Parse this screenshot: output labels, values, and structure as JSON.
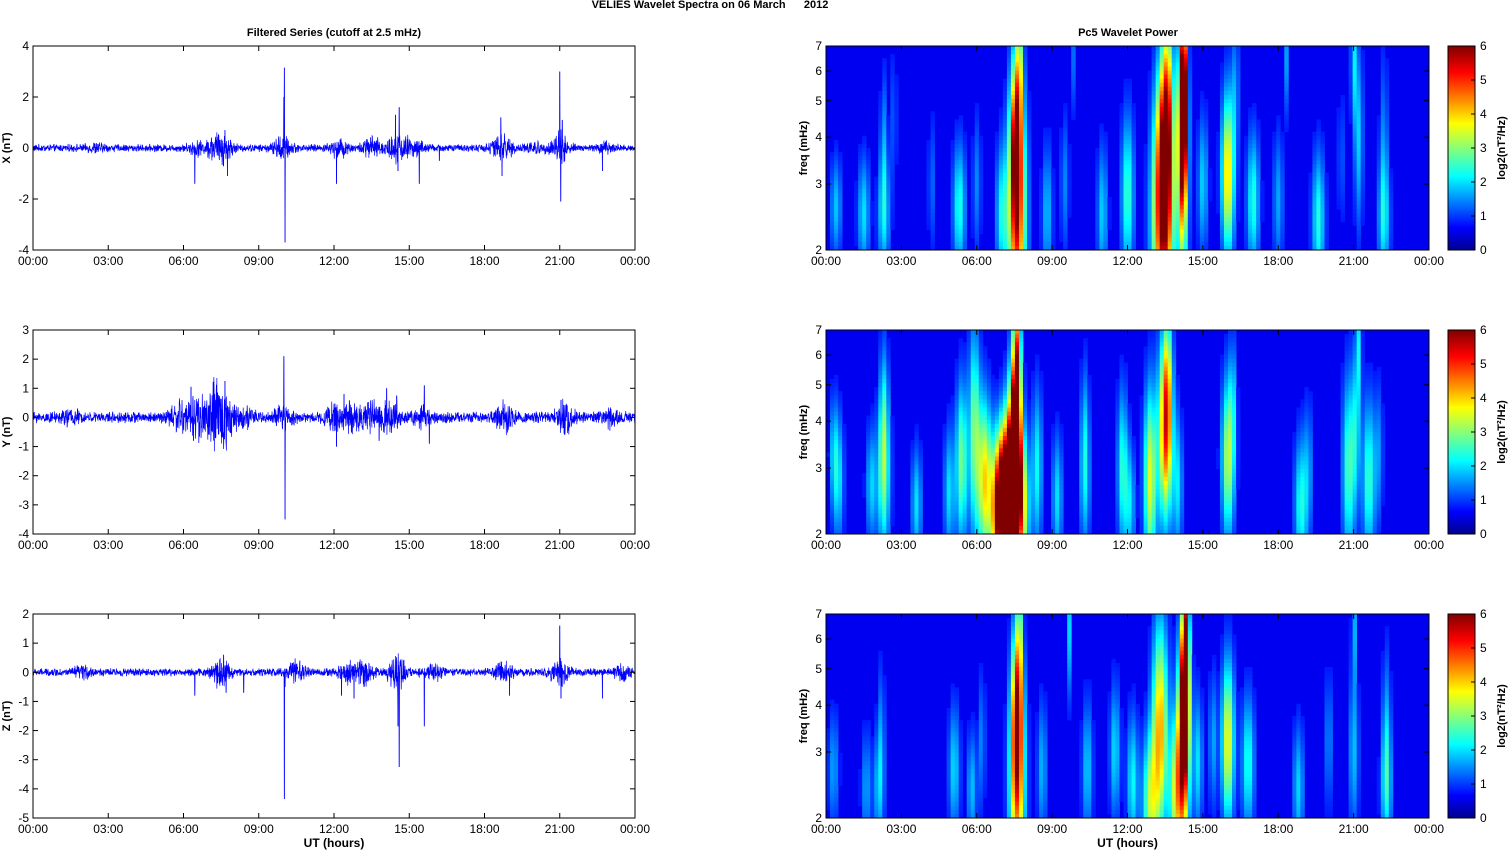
{
  "figure": {
    "title": "VELIES Wavelet Spectra on 06 March      2012",
    "left_title": "Filtered Series (cutoff at 2.5 mHz)",
    "right_title": "Pc5 Wavelet Power",
    "x_tick_labels": [
      "00:00",
      "03:00",
      "06:00",
      "09:00",
      "12:00",
      "15:00",
      "18:00",
      "21:00",
      "00:00"
    ],
    "xlabel": "UT (hours)",
    "colorbar_label": "log2(nT²/Hz)",
    "colorbar_ticks": [
      "0",
      "1",
      "2",
      "3",
      "4",
      "5",
      "6"
    ],
    "freq_label": "freq (mHz)",
    "freq_ticks": [
      "2",
      "3",
      "4",
      "5",
      "6",
      "7"
    ]
  },
  "chart_data": [
    {
      "type": "line",
      "component": "X",
      "ylabel": "X (nT)",
      "xlim": [
        0,
        24
      ],
      "ylim": [
        -4,
        4
      ],
      "yticks": [
        -4,
        -2,
        0,
        2,
        4
      ],
      "color": "#0000ff",
      "noise": 0.11,
      "bursts": [
        [
          2.5,
          0.03
        ],
        [
          6.5,
          0.05
        ],
        [
          7.2,
          0.08
        ],
        [
          7.6,
          0.12
        ],
        [
          9.9,
          0.06
        ],
        [
          10.0,
          0.05
        ],
        [
          12.2,
          0.08
        ],
        [
          13.5,
          0.1
        ],
        [
          14.4,
          0.12
        ],
        [
          14.9,
          0.06
        ],
        [
          15.3,
          0.05
        ],
        [
          18.5,
          0.08
        ],
        [
          18.9,
          0.07
        ],
        [
          20.0,
          0.04
        ],
        [
          21.0,
          0.15
        ],
        [
          22.8,
          0.04
        ]
      ],
      "spikes": [
        [
          6.45,
          -1.4
        ],
        [
          7.65,
          0.7
        ],
        [
          7.75,
          -1.1
        ],
        [
          10.02,
          3.15
        ],
        [
          10.05,
          -3.7
        ],
        [
          10.0,
          2.0
        ],
        [
          12.1,
          -1.4
        ],
        [
          14.45,
          1.3
        ],
        [
          14.55,
          -0.9
        ],
        [
          14.6,
          1.6
        ],
        [
          15.4,
          -1.4
        ],
        [
          16.2,
          -0.5
        ],
        [
          18.65,
          1.2
        ],
        [
          18.7,
          -1.1
        ],
        [
          21.0,
          3.0
        ],
        [
          21.04,
          -2.1
        ],
        [
          21.1,
          1.1
        ],
        [
          22.7,
          -0.9
        ],
        [
          24.0,
          0.1
        ]
      ]
    },
    {
      "type": "line",
      "component": "Y",
      "ylabel": "Y (nT)",
      "xlim": [
        0,
        24
      ],
      "ylim": [
        -4,
        3
      ],
      "yticks": [
        -4,
        -3,
        -2,
        -1,
        0,
        1,
        2,
        3
      ],
      "color": "#0000ff",
      "noise": 0.14,
      "bursts": [
        [
          1.5,
          0.05
        ],
        [
          5.8,
          0.12
        ],
        [
          6.5,
          0.2
        ],
        [
          7.2,
          0.25
        ],
        [
          7.7,
          0.2
        ],
        [
          8.5,
          0.06
        ],
        [
          10.0,
          0.08
        ],
        [
          12.0,
          0.1
        ],
        [
          12.8,
          0.12
        ],
        [
          13.5,
          0.1
        ],
        [
          14.2,
          0.12
        ],
        [
          15.5,
          0.08
        ],
        [
          18.8,
          0.1
        ],
        [
          21.2,
          0.12
        ],
        [
          23.0,
          0.06
        ]
      ],
      "spikes": [
        [
          6.3,
          1.05
        ],
        [
          6.4,
          -0.8
        ],
        [
          7.65,
          1.25
        ],
        [
          7.7,
          -0.9
        ],
        [
          10.0,
          2.1
        ],
        [
          10.05,
          -3.5
        ],
        [
          12.1,
          -1.0
        ],
        [
          12.4,
          0.8
        ],
        [
          13.8,
          -0.8
        ],
        [
          14.1,
          1.0
        ],
        [
          14.5,
          0.75
        ],
        [
          15.6,
          1.1
        ],
        [
          15.8,
          -0.9
        ],
        [
          21.05,
          0.6
        ],
        [
          21.2,
          -0.6
        ]
      ]
    },
    {
      "type": "line",
      "component": "Z",
      "ylabel": "Z (nT)",
      "xlim": [
        0,
        24
      ],
      "ylim": [
        -5,
        2
      ],
      "yticks": [
        -5,
        -4,
        -3,
        -2,
        -1,
        0,
        1,
        2
      ],
      "color": "#0000ff",
      "noise": 0.1,
      "bursts": [
        [
          2.0,
          0.04
        ],
        [
          7.5,
          0.12
        ],
        [
          10.5,
          0.08
        ],
        [
          12.5,
          0.08
        ],
        [
          13.2,
          0.1
        ],
        [
          14.5,
          0.15
        ],
        [
          16.0,
          0.06
        ],
        [
          18.8,
          0.08
        ],
        [
          21.0,
          0.12
        ],
        [
          23.5,
          0.05
        ]
      ],
      "spikes": [
        [
          6.45,
          -0.8
        ],
        [
          7.6,
          0.6
        ],
        [
          7.7,
          -0.7
        ],
        [
          8.4,
          -0.7
        ],
        [
          10.02,
          -4.35
        ],
        [
          10.05,
          -0.5
        ],
        [
          12.3,
          -0.8
        ],
        [
          12.8,
          -0.9
        ],
        [
          14.55,
          -1.85
        ],
        [
          14.6,
          -3.25
        ],
        [
          14.5,
          0.4
        ],
        [
          15.6,
          -1.85
        ],
        [
          19.0,
          -0.8
        ],
        [
          21.0,
          1.6
        ],
        [
          21.05,
          -0.9
        ],
        [
          22.7,
          -0.9
        ]
      ]
    },
    {
      "type": "heatmap",
      "component": "X",
      "xlim": [
        0,
        24
      ],
      "ylim": [
        2,
        7
      ],
      "ylabel": "freq (mHz)",
      "yscale": "log",
      "zlim": [
        0,
        6
      ],
      "colormap": "jet",
      "blobs": [
        [
          0.4,
          2.6,
          1.4,
          0.16,
          0.22
        ],
        [
          1.5,
          2.5,
          1.6,
          0.17,
          0.25
        ],
        [
          2.3,
          2.5,
          1.7,
          0.17,
          0.25
        ],
        [
          2.3,
          4.0,
          1.0,
          0.1,
          0.3
        ],
        [
          2.7,
          4.5,
          0.8,
          0.08,
          0.3
        ],
        [
          4.2,
          3.0,
          0.8,
          0.1,
          0.3
        ],
        [
          5.3,
          2.6,
          2.0,
          0.18,
          0.28
        ],
        [
          6.0,
          3.0,
          1.0,
          0.12,
          0.3
        ],
        [
          7.0,
          2.5,
          1.8,
          0.18,
          0.3
        ],
        [
          7.6,
          2.5,
          4.8,
          0.25,
          0.5
        ],
        [
          7.55,
          4.0,
          4.0,
          0.15,
          0.35
        ],
        [
          7.7,
          6.2,
          2.0,
          0.1,
          0.3
        ],
        [
          8.8,
          2.5,
          1.4,
          0.15,
          0.3
        ],
        [
          9.5,
          3.0,
          1.0,
          0.12,
          0.3
        ],
        [
          11.0,
          2.5,
          1.5,
          0.15,
          0.3
        ],
        [
          12.0,
          2.8,
          2.2,
          0.18,
          0.35
        ],
        [
          13.4,
          2.4,
          5.0,
          0.3,
          0.5
        ],
        [
          13.5,
          3.8,
          4.0,
          0.22,
          0.4
        ],
        [
          13.6,
          5.5,
          2.0,
          0.15,
          0.35
        ],
        [
          14.2,
          3.0,
          3.0,
          0.15,
          0.5
        ],
        [
          14.2,
          4.5,
          6.2,
          0.12,
          0.35
        ],
        [
          14.25,
          6.3,
          3.5,
          0.08,
          0.3
        ],
        [
          15.0,
          3.0,
          1.5,
          0.15,
          0.3
        ],
        [
          16.0,
          3.2,
          3.8,
          0.18,
          0.35
        ],
        [
          16.3,
          5.5,
          1.0,
          0.1,
          0.3
        ],
        [
          17.0,
          2.7,
          2.0,
          0.18,
          0.3
        ],
        [
          18.0,
          2.7,
          1.2,
          0.15,
          0.3
        ],
        [
          19.6,
          2.4,
          2.0,
          0.18,
          0.3
        ],
        [
          20.5,
          3.5,
          0.7,
          0.1,
          0.3
        ],
        [
          21.2,
          4.0,
          1.5,
          0.12,
          0.4
        ],
        [
          21.0,
          6.5,
          1.6,
          0.08,
          0.3
        ],
        [
          22.2,
          2.4,
          1.5,
          0.18,
          0.25
        ],
        [
          22.2,
          3.8,
          1.0,
          0.12,
          0.4
        ],
        [
          9.8,
          6.5,
          1.0,
          0.06,
          0.25
        ],
        [
          18.3,
          6.5,
          1.2,
          0.06,
          0.25
        ]
      ]
    },
    {
      "type": "heatmap",
      "component": "Y",
      "xlim": [
        0,
        24
      ],
      "ylim": [
        2,
        7
      ],
      "ylabel": "freq (mHz)",
      "yscale": "log",
      "zlim": [
        0,
        6
      ],
      "colormap": "jet",
      "blobs": [
        [
          0.5,
          2.8,
          1.6,
          0.15,
          0.28
        ],
        [
          0.3,
          3.3,
          1.2,
          0.12,
          0.25
        ],
        [
          1.8,
          2.7,
          1.5,
          0.15,
          0.25
        ],
        [
          2.3,
          2.9,
          2.3,
          0.18,
          0.35
        ],
        [
          2.3,
          4.2,
          1.2,
          0.12,
          0.35
        ],
        [
          3.6,
          2.4,
          1.6,
          0.15,
          0.25
        ],
        [
          4.9,
          2.6,
          1.6,
          0.15,
          0.28
        ],
        [
          5.4,
          3.1,
          2.6,
          0.17,
          0.35
        ],
        [
          5.9,
          3.8,
          2.5,
          0.15,
          0.45
        ],
        [
          6.3,
          2.8,
          3.5,
          0.2,
          0.35
        ],
        [
          6.9,
          2.3,
          5.0,
          0.25,
          0.3
        ],
        [
          7.1,
          2.5,
          4.5,
          0.22,
          0.3
        ],
        [
          7.4,
          2.8,
          5.5,
          0.2,
          0.35
        ],
        [
          7.55,
          3.5,
          5.8,
          0.15,
          0.45
        ],
        [
          7.6,
          5.5,
          3.0,
          0.1,
          0.35
        ],
        [
          7.8,
          2.4,
          3.5,
          0.2,
          0.3
        ],
        [
          8.4,
          3.0,
          1.8,
          0.15,
          0.35
        ],
        [
          9.2,
          2.5,
          1.6,
          0.15,
          0.28
        ],
        [
          10.3,
          2.7,
          1.4,
          0.15,
          0.3
        ],
        [
          10.3,
          4.0,
          1.0,
          0.12,
          0.3
        ],
        [
          11.8,
          3.0,
          2.0,
          0.15,
          0.35
        ],
        [
          12.1,
          2.4,
          1.5,
          0.15,
          0.25
        ],
        [
          12.9,
          2.8,
          3.3,
          0.18,
          0.4
        ],
        [
          13.5,
          3.8,
          4.2,
          0.2,
          0.4
        ],
        [
          13.6,
          4.8,
          2.0,
          0.12,
          0.35
        ],
        [
          14.0,
          2.7,
          1.6,
          0.14,
          0.3
        ],
        [
          16.0,
          3.2,
          3.0,
          0.18,
          0.35
        ],
        [
          16.2,
          4.5,
          1.0,
          0.1,
          0.3
        ],
        [
          18.9,
          2.4,
          2.0,
          0.18,
          0.3
        ],
        [
          19.2,
          3.0,
          1.0,
          0.12,
          0.3
        ],
        [
          20.8,
          3.0,
          2.3,
          0.18,
          0.4
        ],
        [
          21.1,
          3.9,
          1.4,
          0.12,
          0.35
        ],
        [
          21.2,
          6.5,
          1.4,
          0.08,
          0.25
        ],
        [
          21.6,
          2.8,
          2.2,
          0.18,
          0.35
        ],
        [
          22.0,
          3.3,
          1.0,
          0.12,
          0.3
        ]
      ]
    },
    {
      "type": "heatmap",
      "component": "Z",
      "xlim": [
        0,
        24
      ],
      "ylim": [
        2,
        7
      ],
      "ylabel": "freq (mHz)",
      "yscale": "log",
      "zlim": [
        0,
        6
      ],
      "colormap": "jet",
      "blobs": [
        [
          0.3,
          2.7,
          1.2,
          0.15,
          0.25
        ],
        [
          1.6,
          2.4,
          1.2,
          0.14,
          0.25
        ],
        [
          2.1,
          2.4,
          1.4,
          0.15,
          0.25
        ],
        [
          2.2,
          3.5,
          0.9,
          0.1,
          0.3
        ],
        [
          5.1,
          2.7,
          1.6,
          0.16,
          0.28
        ],
        [
          5.8,
          2.4,
          1.4,
          0.14,
          0.25
        ],
        [
          6.2,
          3.2,
          1.0,
          0.1,
          0.3
        ],
        [
          7.6,
          2.5,
          4.2,
          0.22,
          0.45
        ],
        [
          7.6,
          4.0,
          3.8,
          0.15,
          0.35
        ],
        [
          7.7,
          6.2,
          1.8,
          0.08,
          0.3
        ],
        [
          8.6,
          2.7,
          1.3,
          0.14,
          0.3
        ],
        [
          9.7,
          6.4,
          1.6,
          0.06,
          0.3
        ],
        [
          10.4,
          2.7,
          1.5,
          0.15,
          0.3
        ],
        [
          11.5,
          3.0,
          1.6,
          0.15,
          0.3
        ],
        [
          12.2,
          2.5,
          1.8,
          0.16,
          0.3
        ],
        [
          12.9,
          2.2,
          2.8,
          0.22,
          0.3
        ],
        [
          13.3,
          3.5,
          4.0,
          0.22,
          0.45
        ],
        [
          13.9,
          2.3,
          2.6,
          0.18,
          0.3
        ],
        [
          14.2,
          3.0,
          5.0,
          0.18,
          0.45
        ],
        [
          14.3,
          4.5,
          5.5,
          0.12,
          0.35
        ],
        [
          14.3,
          6.3,
          2.5,
          0.08,
          0.3
        ],
        [
          14.8,
          2.8,
          1.6,
          0.14,
          0.3
        ],
        [
          15.4,
          3.2,
          1.2,
          0.12,
          0.3
        ],
        [
          16.0,
          3.2,
          3.5,
          0.18,
          0.35
        ],
        [
          16.8,
          2.8,
          2.0,
          0.18,
          0.3
        ],
        [
          18.8,
          2.4,
          1.5,
          0.16,
          0.28
        ],
        [
          20.0,
          3.2,
          1.0,
          0.12,
          0.3
        ],
        [
          21.0,
          6.5,
          1.4,
          0.06,
          0.25
        ],
        [
          21.0,
          3.0,
          1.4,
          0.14,
          0.35
        ],
        [
          22.3,
          2.4,
          1.6,
          0.16,
          0.25
        ],
        [
          22.3,
          3.5,
          1.2,
          0.12,
          0.35
        ]
      ]
    }
  ]
}
